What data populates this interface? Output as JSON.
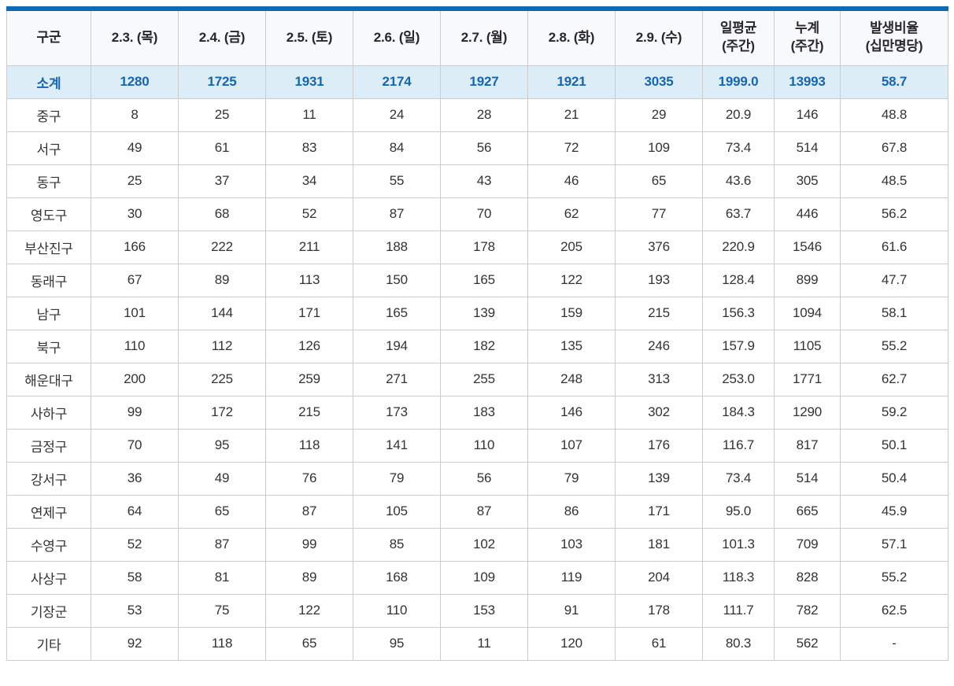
{
  "colors": {
    "top_bar": "#0f6ab4",
    "header_bg": "#f8f9fa",
    "header_text": "#26262c",
    "subtotal_bg": "#ddedf8",
    "subtotal_text": "#1566ad",
    "body_text": "#333333",
    "border": "#cccccc"
  },
  "chart_data": {
    "type": "table",
    "columns": [
      "구군",
      "2.3. (목)",
      "2.4. (금)",
      "2.5. (토)",
      "2.6. (일)",
      "2.7. (월)",
      "2.8. (화)",
      "2.9. (수)",
      "일평균\n(주간)",
      "누계\n(주간)",
      "발생비율\n(십만명당)"
    ],
    "rows": [
      {
        "label": "소계",
        "subtotal": true,
        "values": [
          "1280",
          "1725",
          "1931",
          "2174",
          "1927",
          "1921",
          "3035",
          "1999.0",
          "13993",
          "58.7"
        ]
      },
      {
        "label": "중구",
        "values": [
          "8",
          "25",
          "11",
          "24",
          "28",
          "21",
          "29",
          "20.9",
          "146",
          "48.8"
        ]
      },
      {
        "label": "서구",
        "values": [
          "49",
          "61",
          "83",
          "84",
          "56",
          "72",
          "109",
          "73.4",
          "514",
          "67.8"
        ]
      },
      {
        "label": "동구",
        "values": [
          "25",
          "37",
          "34",
          "55",
          "43",
          "46",
          "65",
          "43.6",
          "305",
          "48.5"
        ]
      },
      {
        "label": "영도구",
        "values": [
          "30",
          "68",
          "52",
          "87",
          "70",
          "62",
          "77",
          "63.7",
          "446",
          "56.2"
        ]
      },
      {
        "label": "부산진구",
        "values": [
          "166",
          "222",
          "211",
          "188",
          "178",
          "205",
          "376",
          "220.9",
          "1546",
          "61.6"
        ]
      },
      {
        "label": "동래구",
        "values": [
          "67",
          "89",
          "113",
          "150",
          "165",
          "122",
          "193",
          "128.4",
          "899",
          "47.7"
        ]
      },
      {
        "label": "남구",
        "values": [
          "101",
          "144",
          "171",
          "165",
          "139",
          "159",
          "215",
          "156.3",
          "1094",
          "58.1"
        ]
      },
      {
        "label": "북구",
        "values": [
          "110",
          "112",
          "126",
          "194",
          "182",
          "135",
          "246",
          "157.9",
          "1105",
          "55.2"
        ]
      },
      {
        "label": "해운대구",
        "values": [
          "200",
          "225",
          "259",
          "271",
          "255",
          "248",
          "313",
          "253.0",
          "1771",
          "62.7"
        ]
      },
      {
        "label": "사하구",
        "values": [
          "99",
          "172",
          "215",
          "173",
          "183",
          "146",
          "302",
          "184.3",
          "1290",
          "59.2"
        ]
      },
      {
        "label": "금정구",
        "values": [
          "70",
          "95",
          "118",
          "141",
          "110",
          "107",
          "176",
          "116.7",
          "817",
          "50.1"
        ]
      },
      {
        "label": "강서구",
        "values": [
          "36",
          "49",
          "76",
          "79",
          "56",
          "79",
          "139",
          "73.4",
          "514",
          "50.4"
        ]
      },
      {
        "label": "연제구",
        "values": [
          "64",
          "65",
          "87",
          "105",
          "87",
          "86",
          "171",
          "95.0",
          "665",
          "45.9"
        ]
      },
      {
        "label": "수영구",
        "values": [
          "52",
          "87",
          "99",
          "85",
          "102",
          "103",
          "181",
          "101.3",
          "709",
          "57.1"
        ]
      },
      {
        "label": "사상구",
        "values": [
          "58",
          "81",
          "89",
          "168",
          "109",
          "119",
          "204",
          "118.3",
          "828",
          "55.2"
        ]
      },
      {
        "label": "기장군",
        "values": [
          "53",
          "75",
          "122",
          "110",
          "153",
          "91",
          "178",
          "111.7",
          "782",
          "62.5"
        ]
      },
      {
        "label": "기타",
        "values": [
          "92",
          "118",
          "65",
          "95",
          "11",
          "120",
          "61",
          "80.3",
          "562",
          "-"
        ]
      }
    ]
  }
}
